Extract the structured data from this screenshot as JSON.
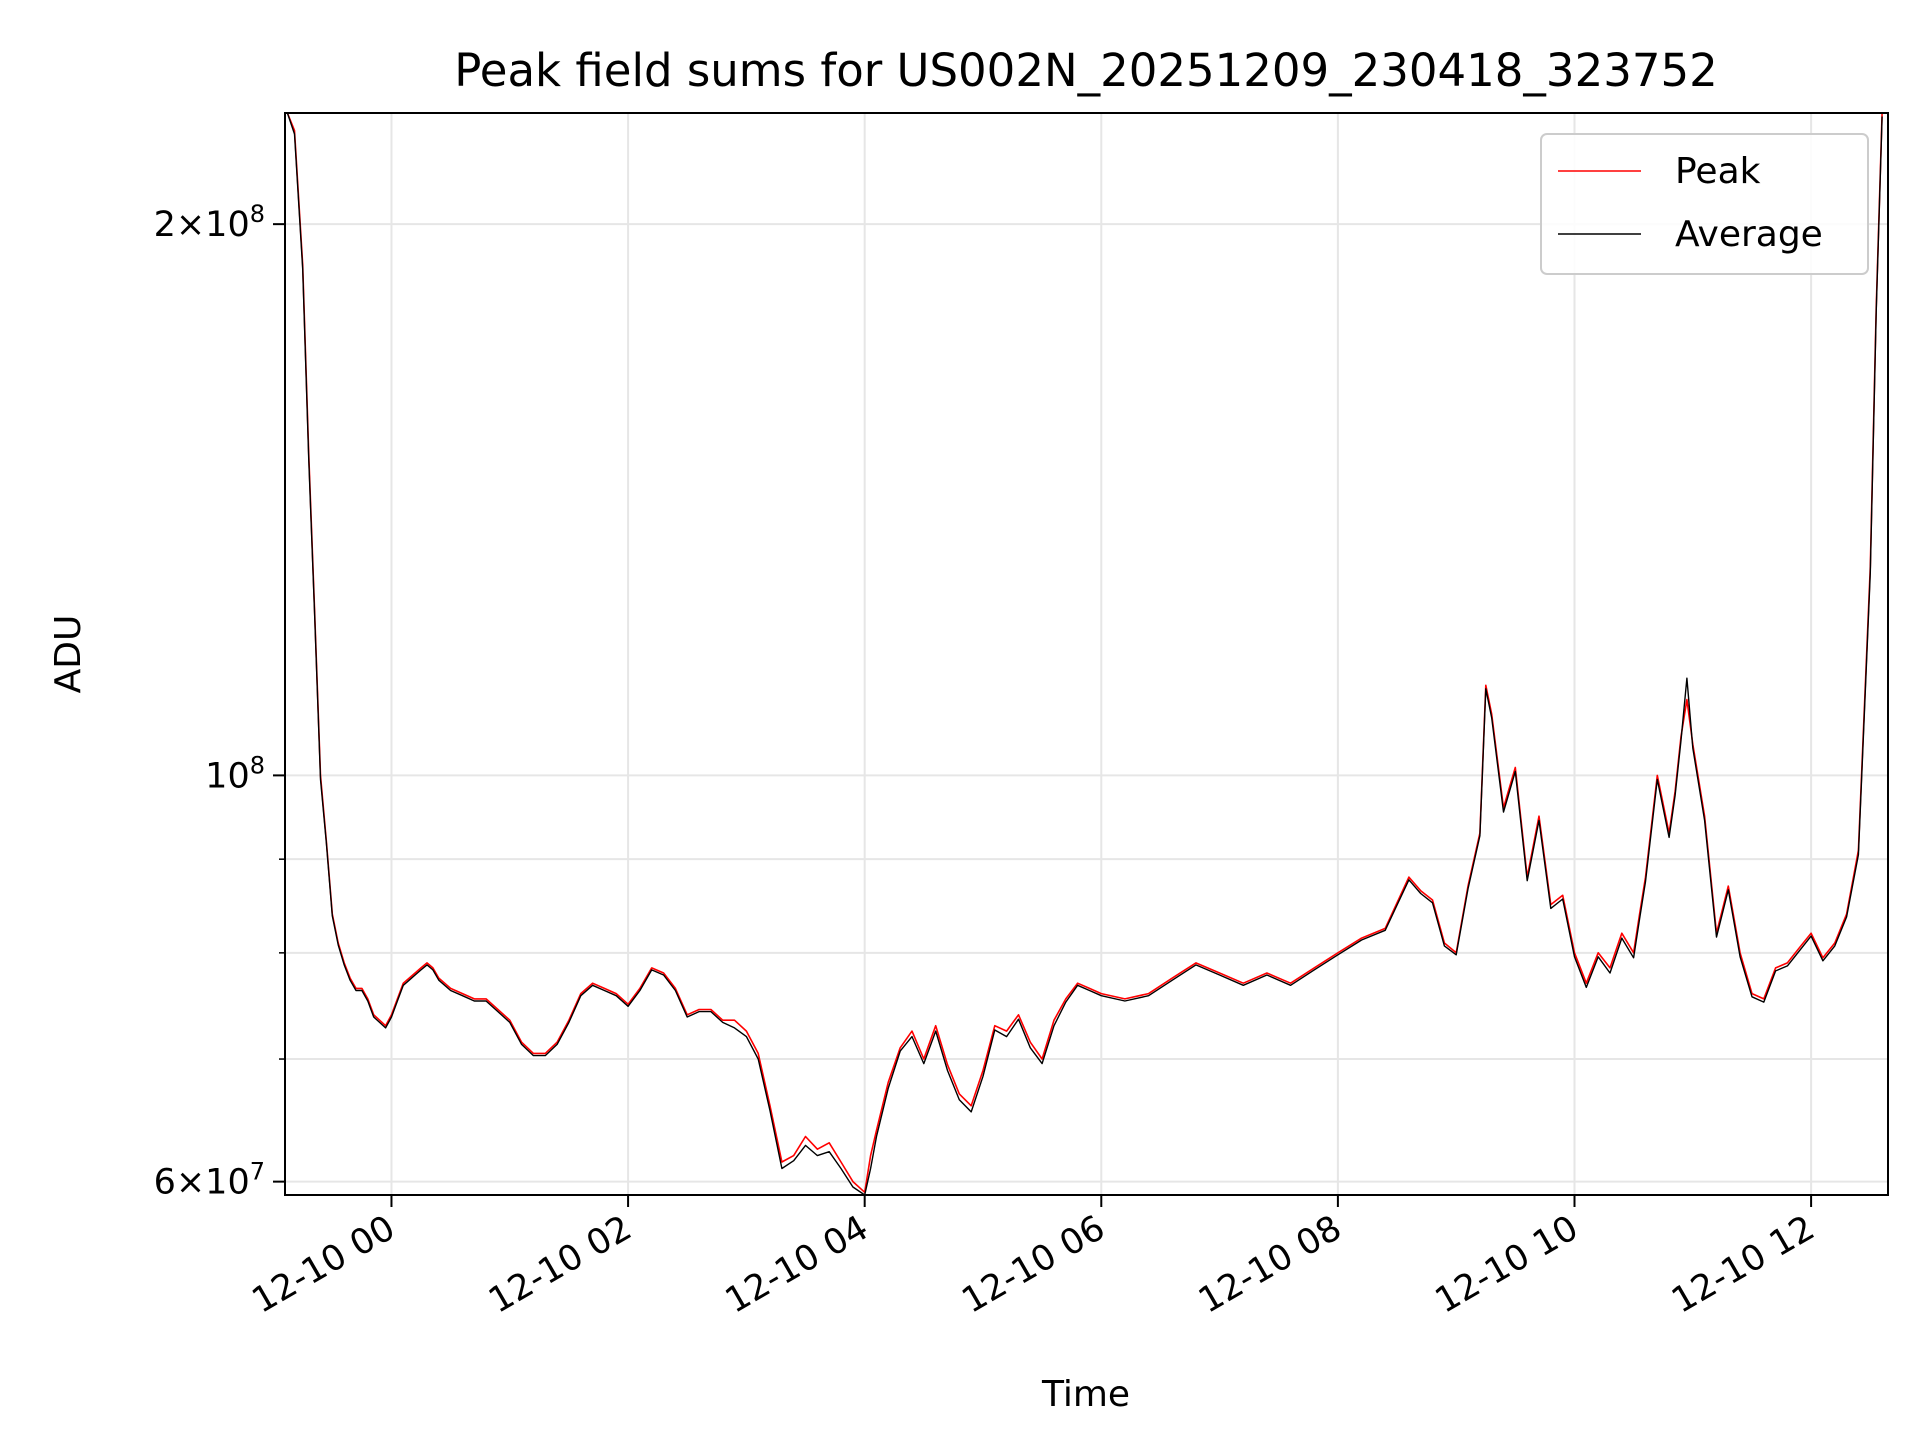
{
  "chart_data": {
    "type": "line",
    "title": "Peak field sums for US002N_20251209_230418_323752",
    "xlabel": "Time",
    "ylabel": "ADU",
    "yscale": "log",
    "ylim": [
      59000000,
      230000000
    ],
    "xlim": [
      -0.9,
      12.65
    ],
    "x_unit": "hours after 12-10 00:00",
    "grid": true,
    "legend_position": "top-right",
    "x_ticks": [
      {
        "value": 0,
        "label": "12-10 00"
      },
      {
        "value": 2,
        "label": "12-10 02"
      },
      {
        "value": 4,
        "label": "12-10 04"
      },
      {
        "value": 6,
        "label": "12-10 06"
      },
      {
        "value": 8,
        "label": "12-10 08"
      },
      {
        "value": 10,
        "label": "12-10 10"
      },
      {
        "value": 12,
        "label": "12-10 12"
      }
    ],
    "y_major_ticks": [
      {
        "value": 60000000,
        "mantissa": "6",
        "exponent": "7"
      },
      {
        "value": 100000000,
        "mantissa": "",
        "exponent": "8"
      },
      {
        "value": 200000000,
        "mantissa": "2",
        "exponent": "8"
      }
    ],
    "y_minor_gridlines": [
      70000000,
      80000000,
      90000000
    ],
    "series": [
      {
        "name": "Peak",
        "color": "#ff0000",
        "x": [
          -0.88,
          -0.82,
          -0.75,
          -0.7,
          -0.65,
          -0.6,
          -0.55,
          -0.5,
          -0.45,
          -0.4,
          -0.35,
          -0.3,
          -0.25,
          -0.2,
          -0.15,
          -0.1,
          -0.05,
          0,
          0.05,
          0.1,
          0.15,
          0.2,
          0.25,
          0.3,
          0.35,
          0.4,
          0.45,
          0.5,
          0.6,
          0.7,
          0.8,
          0.9,
          1.0,
          1.1,
          1.2,
          1.3,
          1.4,
          1.5,
          1.6,
          1.7,
          1.8,
          1.9,
          2.0,
          2.1,
          2.2,
          2.3,
          2.4,
          2.5,
          2.6,
          2.7,
          2.8,
          2.9,
          3.0,
          3.1,
          3.2,
          3.3,
          3.4,
          3.5,
          3.6,
          3.7,
          3.8,
          3.9,
          4.0,
          4.05,
          4.1,
          4.2,
          4.3,
          4.4,
          4.5,
          4.6,
          4.7,
          4.8,
          4.9,
          5.0,
          5.1,
          5.2,
          5.3,
          5.4,
          5.5,
          5.6,
          5.7,
          5.8,
          5.9,
          6.0,
          6.2,
          6.4,
          6.6,
          6.8,
          7.0,
          7.2,
          7.4,
          7.6,
          7.8,
          8.0,
          8.2,
          8.4,
          8.6,
          8.7,
          8.8,
          8.9,
          9.0,
          9.1,
          9.2,
          9.25,
          9.3,
          9.4,
          9.5,
          9.6,
          9.7,
          9.8,
          9.9,
          10.0,
          10.1,
          10.2,
          10.3,
          10.4,
          10.5,
          10.55,
          10.6,
          10.7,
          10.8,
          10.85,
          10.9,
          10.95,
          11.0,
          11.1,
          11.2,
          11.3,
          11.4,
          11.5,
          11.6,
          11.7,
          11.8,
          11.9,
          12.0,
          12.1,
          12.2,
          12.3,
          12.4,
          12.5,
          12.55,
          12.6
        ],
        "y": [
          230000000,
          225000000,
          190000000,
          150000000,
          123000000,
          100000000,
          92000000,
          84000000,
          81000000,
          79000000,
          77500000,
          76500000,
          76500000,
          75500000,
          74000000,
          73500000,
          73000000,
          74000000,
          75500000,
          77000000,
          77500000,
          78000000,
          78500000,
          79000000,
          78500000,
          77500000,
          77000000,
          76500000,
          76000000,
          75500000,
          75500000,
          74500000,
          73500000,
          71500000,
          70500000,
          70500000,
          71500000,
          73500000,
          76000000,
          77000000,
          76500000,
          76000000,
          75000000,
          76500000,
          78500000,
          78000000,
          76500000,
          74000000,
          74500000,
          74500000,
          73500000,
          73500000,
          72500000,
          70500000,
          66000000,
          61500000,
          62000000,
          63500000,
          62500000,
          63000000,
          61500000,
          60000000,
          59200000,
          62000000,
          64000000,
          68000000,
          71000000,
          72500000,
          70000000,
          73000000,
          69500000,
          67000000,
          66000000,
          69000000,
          73000000,
          72500000,
          74000000,
          71500000,
          70000000,
          73500000,
          75500000,
          77000000,
          76500000,
          76000000,
          75500000,
          76000000,
          77500000,
          79000000,
          78000000,
          77000000,
          78000000,
          77000000,
          78500000,
          80000000,
          81500000,
          82500000,
          88000000,
          86500000,
          85500000,
          81000000,
          80000000,
          87000000,
          93000000,
          112000000,
          108000000,
          96000000,
          101000000,
          88000000,
          95000000,
          85000000,
          86000000,
          80000000,
          77000000,
          80000000,
          78500000,
          82000000,
          80000000,
          84000000,
          88000000,
          100000000,
          93000000,
          98000000,
          105000000,
          110000000,
          104000000,
          95000000,
          82000000,
          87000000,
          80000000,
          76000000,
          75500000,
          78500000,
          79000000,
          80500000,
          82000000,
          79500000,
          81000000,
          84000000,
          91000000,
          130000000,
          180000000,
          230000000
        ]
      },
      {
        "name": "Average",
        "color": "#000000",
        "x": [
          -0.88,
          -0.82,
          -0.75,
          -0.7,
          -0.65,
          -0.6,
          -0.55,
          -0.5,
          -0.45,
          -0.4,
          -0.35,
          -0.3,
          -0.25,
          -0.2,
          -0.15,
          -0.1,
          -0.05,
          0,
          0.05,
          0.1,
          0.15,
          0.2,
          0.25,
          0.3,
          0.35,
          0.4,
          0.45,
          0.5,
          0.6,
          0.7,
          0.8,
          0.9,
          1.0,
          1.1,
          1.2,
          1.3,
          1.4,
          1.5,
          1.6,
          1.7,
          1.8,
          1.9,
          2.0,
          2.1,
          2.2,
          2.3,
          2.4,
          2.5,
          2.6,
          2.7,
          2.8,
          2.9,
          3.0,
          3.1,
          3.2,
          3.3,
          3.4,
          3.5,
          3.6,
          3.7,
          3.8,
          3.9,
          4.0,
          4.05,
          4.1,
          4.2,
          4.3,
          4.4,
          4.5,
          4.6,
          4.7,
          4.8,
          4.9,
          5.0,
          5.1,
          5.2,
          5.3,
          5.4,
          5.5,
          5.6,
          5.7,
          5.8,
          5.9,
          6.0,
          6.2,
          6.4,
          6.6,
          6.8,
          7.0,
          7.2,
          7.4,
          7.6,
          7.8,
          8.0,
          8.2,
          8.4,
          8.6,
          8.7,
          8.8,
          8.9,
          9.0,
          9.1,
          9.2,
          9.25,
          9.3,
          9.4,
          9.5,
          9.6,
          9.7,
          9.8,
          9.9,
          10.0,
          10.1,
          10.2,
          10.3,
          10.4,
          10.5,
          10.55,
          10.6,
          10.7,
          10.8,
          10.85,
          10.9,
          10.95,
          11.0,
          11.1,
          11.2,
          11.3,
          11.4,
          11.5,
          11.6,
          11.7,
          11.8,
          11.9,
          12.0,
          12.1,
          12.2,
          12.3,
          12.4,
          12.5,
          12.55,
          12.6
        ],
        "y": [
          230000000,
          224000000,
          189000000,
          149000000,
          122500000,
          99500000,
          91800000,
          83800000,
          80800000,
          78800000,
          77300000,
          76300000,
          76300000,
          75300000,
          73800000,
          73300000,
          72800000,
          73800000,
          75300000,
          76800000,
          77300000,
          77800000,
          78300000,
          78800000,
          78300000,
          77300000,
          76800000,
          76300000,
          75800000,
          75300000,
          75300000,
          74300000,
          73300000,
          71300000,
          70300000,
          70300000,
          71300000,
          73300000,
          75800000,
          76800000,
          76300000,
          75800000,
          74800000,
          76300000,
          78300000,
          77800000,
          76300000,
          73800000,
          74300000,
          74300000,
          73300000,
          72800000,
          72000000,
          70000000,
          65600000,
          61000000,
          61600000,
          62800000,
          62000000,
          62300000,
          61000000,
          59600000,
          59000000,
          61000000,
          63500000,
          67500000,
          70700000,
          72000000,
          69600000,
          72500000,
          69000000,
          66500000,
          65500000,
          68500000,
          72600000,
          72000000,
          73600000,
          71000000,
          69600000,
          73000000,
          75200000,
          76800000,
          76300000,
          75800000,
          75300000,
          75800000,
          77300000,
          78800000,
          77800000,
          76800000,
          77800000,
          76800000,
          78300000,
          79800000,
          81300000,
          82300000,
          87700000,
          86200000,
          85200000,
          80700000,
          79800000,
          86700000,
          92700000,
          111500000,
          107500000,
          95500000,
          100500000,
          87600000,
          94500000,
          84600000,
          85600000,
          79600000,
          76600000,
          79600000,
          78000000,
          81500000,
          79500000,
          83500000,
          87500000,
          99500000,
          92500000,
          97500000,
          104500000,
          113000000,
          103500000,
          94500000,
          81600000,
          86600000,
          79600000,
          75700000,
          75200000,
          78200000,
          78700000,
          80200000,
          81700000,
          79200000,
          80700000,
          83700000,
          90500000,
          129000000,
          179000000,
          229000000
        ]
      }
    ]
  }
}
